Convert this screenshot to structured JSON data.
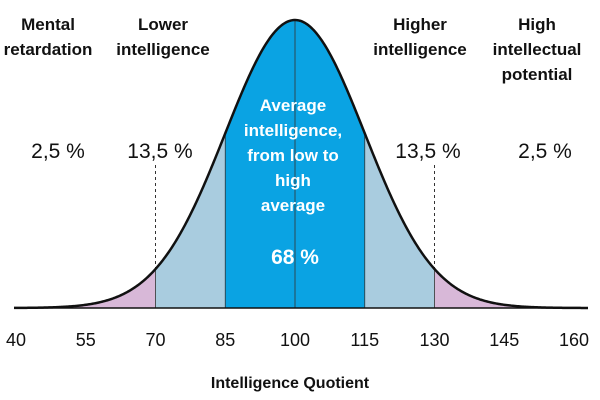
{
  "chart_data": {
    "type": "area",
    "title": "",
    "xlabel": "Intelligence Quotient",
    "ylabel": "",
    "xlim": [
      40,
      160
    ],
    "mean": 100,
    "sd": 15,
    "grid": false,
    "x_ticks": [
      "40",
      "55",
      "70",
      "85",
      "100",
      "115",
      "130",
      "145",
      "160"
    ],
    "x_tick_values": [
      40,
      55,
      70,
      85,
      100,
      115,
      130,
      145,
      160
    ],
    "regions": [
      {
        "key": "left_tail",
        "from": 40,
        "to": 70,
        "color": "#d8b8d8"
      },
      {
        "key": "left_mid",
        "from": 70,
        "to": 85,
        "color": "#a9ccdf"
      },
      {
        "key": "center",
        "from": 85,
        "to": 115,
        "color": "#0aa3e3"
      },
      {
        "key": "right_mid",
        "from": 115,
        "to": 130,
        "color": "#a9ccdf"
      },
      {
        "key": "right_tail",
        "from": 130,
        "to": 160,
        "color": "#d8b8d8"
      }
    ],
    "categories": {
      "mental_retardation": {
        "lines": [
          "Mental",
          "retardation"
        ],
        "percent": "2,5 %"
      },
      "lower_intelligence": {
        "lines": [
          "Lower",
          "intelligence"
        ],
        "percent": "13,5 %"
      },
      "average": {
        "lines": [
          "Average",
          "intelligence,",
          "from low to",
          "high",
          "average"
        ],
        "percent": "68 %"
      },
      "higher_intelligence": {
        "lines": [
          "Higher",
          "intelligence"
        ],
        "percent": "13,5 %"
      },
      "high_potential": {
        "lines": [
          "High",
          "intellectual",
          "potential"
        ],
        "percent": "2,5 %"
      }
    }
  }
}
